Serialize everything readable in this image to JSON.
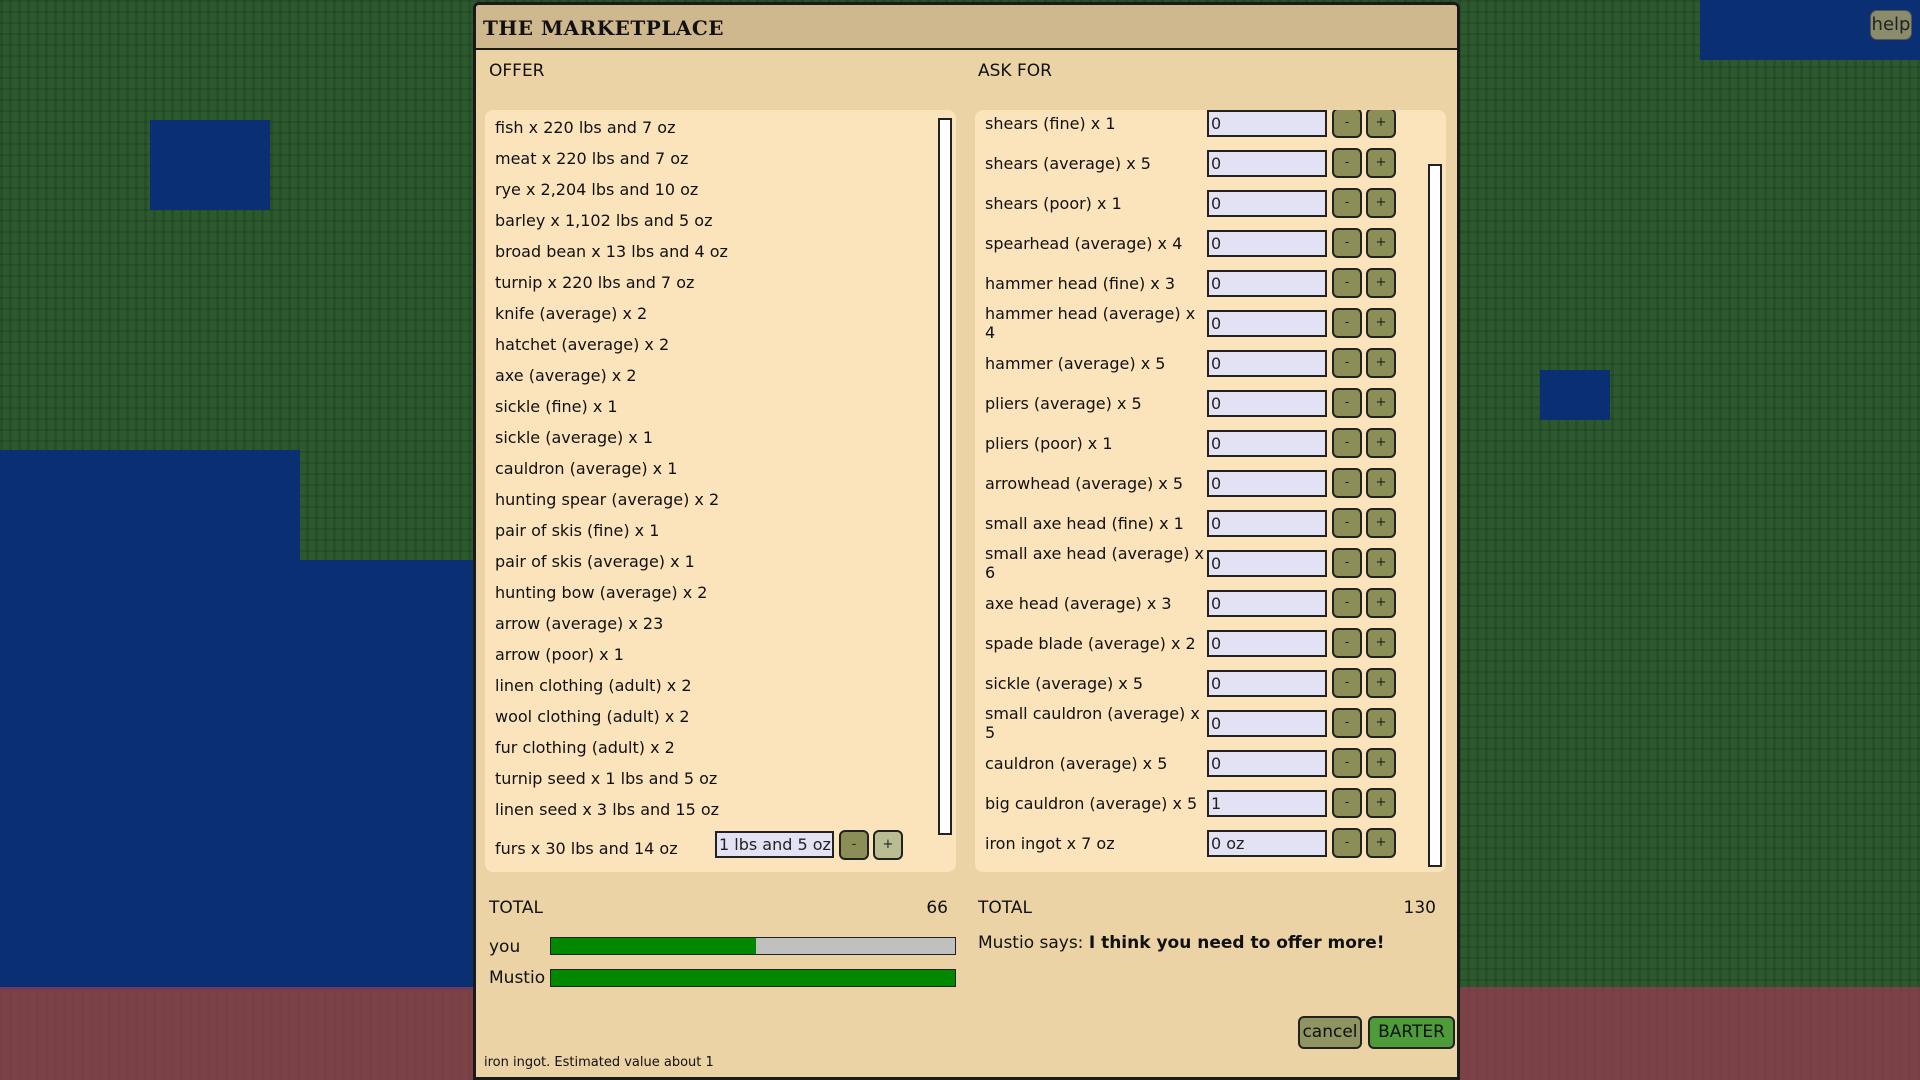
{
  "help_label": "help",
  "dialog": {
    "title": "THE MARKETPLACE",
    "offer": {
      "heading": "OFFER",
      "items": [
        "fish x 220 lbs and 7 oz",
        "meat x 220 lbs and 7 oz",
        "rye x 2,204 lbs and 10 oz",
        "barley x 1,102 lbs and 5 oz",
        "broad bean x 13 lbs and 4 oz",
        "turnip x 220 lbs and 7 oz",
        "knife (average) x 2",
        "hatchet (average) x 2",
        "axe (average) x 2",
        "sickle (fine) x 1",
        "sickle (average) x 1",
        "cauldron (average) x 1",
        "hunting spear (average) x 2",
        "pair of skis (fine) x 1",
        "pair of skis (average) x 1",
        "hunting bow (average) x 2",
        "arrow (average) x 23",
        "arrow (poor) x 1",
        "linen clothing (adult) x 2",
        "wool clothing (adult) x 2",
        "fur clothing (adult) x 2",
        "turnip seed x 1 lbs and 5 oz",
        "linen seed x 3 lbs and 15 oz"
      ],
      "selected_item": {
        "label": "furs x 30 lbs and 14 oz",
        "value": "1 lbs and 5 oz"
      },
      "minus_label": "-",
      "plus_label": "+",
      "total_label": "TOTAL",
      "total_value": "66"
    },
    "ask": {
      "heading": "ASK FOR",
      "items": [
        {
          "label": "shears (fine) x 1",
          "value": "0"
        },
        {
          "label": "shears (average) x 5",
          "value": "0"
        },
        {
          "label": "shears (poor) x 1",
          "value": "0"
        },
        {
          "label": "spearhead (average) x 4",
          "value": "0"
        },
        {
          "label": "hammer head (fine) x 3",
          "value": "0"
        },
        {
          "label": "hammer head (average) x 4",
          "value": "0"
        },
        {
          "label": "hammer (average) x 5",
          "value": "0"
        },
        {
          "label": "pliers (average) x 5",
          "value": "0"
        },
        {
          "label": "pliers (poor) x 1",
          "value": "0"
        },
        {
          "label": "arrowhead (average) x 5",
          "value": "0"
        },
        {
          "label": "small axe head (fine) x 1",
          "value": "0"
        },
        {
          "label": "small axe head (average) x 6",
          "value": "0"
        },
        {
          "label": "axe head (average) x 3",
          "value": "0"
        },
        {
          "label": "spade blade (average) x 2",
          "value": "0"
        },
        {
          "label": "sickle (average) x 5",
          "value": "0"
        },
        {
          "label": "small cauldron (average) x 5",
          "value": "0"
        },
        {
          "label": "cauldron (average) x 5",
          "value": "0"
        },
        {
          "label": "big cauldron (average) x 5",
          "value": "1"
        },
        {
          "label": "iron ingot x 7 oz",
          "value": "0 oz"
        }
      ],
      "minus_label": "-",
      "plus_label": "+",
      "total_label": "TOTAL",
      "total_value": "130"
    },
    "balance": {
      "you_label": "you",
      "you_fraction": 0.508,
      "trader_label": "Mustio",
      "trader_fraction": 1.0,
      "fill_color": "#008800"
    },
    "message_prefix": "Mustio says: ",
    "message": "I think you need to offer more!",
    "cancel_label": "cancel",
    "barter_label": "BARTER",
    "status": "iron ingot. Estimated value about 1"
  }
}
